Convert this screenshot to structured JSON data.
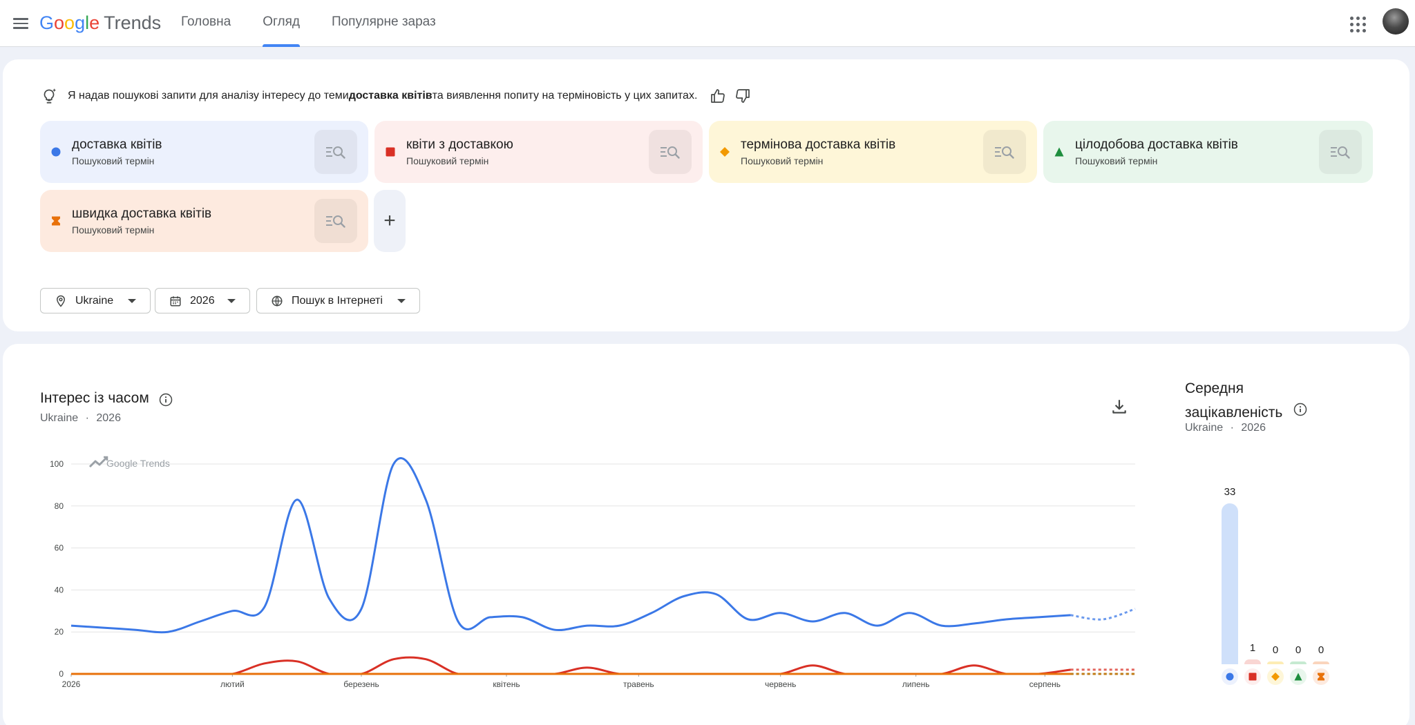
{
  "header": {
    "logo_letters": [
      "G",
      "o",
      "o",
      "g",
      "l",
      "e"
    ],
    "logo_trends": "Trends",
    "nav": [
      {
        "label": "Головна",
        "active": false
      },
      {
        "label": "Огляд",
        "active": true
      },
      {
        "label": "Популярне зараз",
        "active": false
      }
    ]
  },
  "ai_summary": {
    "prefix": "Я надав пошукові запити для аналізу інтересу до теми ",
    "topic": "доставка квітів",
    "suffix": " та виявлення попиту на терміновість у цих запитах."
  },
  "terms": [
    {
      "name": "доставка квітів",
      "type": "Пошуковий термін",
      "color": "#3b78e7",
      "bg": "#ecf1fd",
      "marker": "circle"
    },
    {
      "name": "квіти з доставкою",
      "type": "Пошуковий термін",
      "color": "#d93025",
      "bg": "#fdeeed",
      "marker": "square"
    },
    {
      "name": "термінова доставка квітів",
      "type": "Пошуковий термін",
      "color": "#f29900",
      "bg": "#fef6d8",
      "marker": "diamond"
    },
    {
      "name": "цілодобова доставка квітів",
      "type": "Пошуковий термін",
      "color": "#1e8e3e",
      "bg": "#e8f6ec",
      "marker": "triangle"
    },
    {
      "name": "швидка доставка квітів",
      "type": "Пошуковий термін",
      "color": "#e8710a",
      "bg": "#fdeadf",
      "marker": "hourglass"
    }
  ],
  "add_term_label": "+",
  "filters": {
    "location": "Ukraine",
    "period": "2026",
    "property": "Пошук в Інтернеті"
  },
  "interest_over_time": {
    "title": "Інтерес із часом",
    "subtitle_location": "Ukraine",
    "subtitle_period": "2026",
    "watermark": "Google Trends"
  },
  "average_interest": {
    "title_line1": "Середня",
    "title_line2": "зацікавленість",
    "subtitle_location": "Ukraine",
    "subtitle_period": "2026"
  },
  "chart_data": [
    {
      "type": "line",
      "yticks": [
        0,
        20,
        40,
        60,
        80,
        100
      ],
      "ylim": [
        0,
        100
      ],
      "x_tick_labels": [
        "2026",
        "лютий",
        "березень",
        "квітень",
        "травень",
        "червень",
        "липень",
        "серпень"
      ],
      "x_tick_weeks": [
        1,
        6,
        10,
        14.5,
        18.6,
        23,
        27.2,
        31.2
      ],
      "partial_from_week": 31,
      "series": [
        {
          "term_index": 0,
          "values": [
            23,
            22,
            21,
            20,
            25,
            30,
            32,
            83,
            36,
            31,
            100,
            83,
            25,
            27,
            27,
            21,
            23,
            23,
            29,
            37,
            38,
            26,
            29,
            25,
            29,
            23,
            29,
            23,
            24,
            26,
            27,
            28,
            26,
            31
          ]
        },
        {
          "term_index": 1,
          "values": [
            0,
            0,
            0,
            0,
            0,
            0,
            5,
            6,
            0,
            0,
            7,
            7,
            0,
            0,
            0,
            0,
            3,
            0,
            0,
            0,
            0,
            0,
            0,
            4,
            0,
            0,
            0,
            0,
            4,
            0,
            0,
            2,
            2,
            2
          ]
        },
        {
          "term_index": 2,
          "values": [
            0,
            0,
            0,
            0,
            0,
            0,
            0,
            0,
            0,
            0,
            0,
            0,
            0,
            0,
            0,
            0,
            0,
            0,
            0,
            0,
            0,
            0,
            0,
            0,
            0,
            0,
            0,
            0,
            0,
            0,
            0,
            0,
            0,
            0
          ]
        },
        {
          "term_index": 3,
          "values": [
            0,
            0,
            0,
            0,
            0,
            0,
            0,
            0,
            0,
            0,
            0,
            0,
            0,
            0,
            0,
            0,
            0,
            0,
            0,
            0,
            0,
            0,
            0,
            0,
            0,
            0,
            0,
            0,
            0,
            0,
            0,
            0,
            0,
            0
          ]
        },
        {
          "term_index": 4,
          "values": [
            0,
            0,
            0,
            0,
            0,
            0,
            0,
            0,
            0,
            0,
            0,
            0,
            0,
            0,
            0,
            0,
            0,
            0,
            0,
            0,
            0,
            0,
            0,
            0,
            0,
            0,
            0,
            0,
            0,
            0,
            0,
            0,
            0,
            0
          ]
        }
      ]
    },
    {
      "type": "bar",
      "categories": [
        "доставка квітів",
        "квіти з доставкою",
        "термінова доставка квітів",
        "цілодобова доставка квітів",
        "швидка доставка квітів"
      ],
      "values": [
        33,
        1,
        0,
        0,
        0
      ]
    }
  ]
}
